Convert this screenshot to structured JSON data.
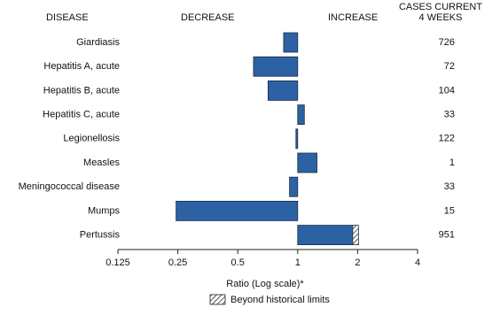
{
  "chart_data": {
    "type": "bar",
    "orientation": "horizontal",
    "headers": {
      "disease": "DISEASE",
      "decrease": "DECREASE",
      "increase": "INCREASE",
      "cases": [
        "CASES CURRENT",
        "4 WEEKS"
      ]
    },
    "categories": [
      "Giardiasis",
      "Hepatitis A, acute",
      "Hepatitis B, acute",
      "Hepatitis C, acute",
      "Legionellosis",
      "Measles",
      "Meningococcal disease",
      "Mumps",
      "Pertussis"
    ],
    "values": [
      0.85,
      0.6,
      0.71,
      1.08,
      0.98,
      1.25,
      0.91,
      0.245,
      2.02
    ],
    "historical_limits": [
      null,
      null,
      null,
      null,
      null,
      null,
      null,
      null,
      1.89
    ],
    "cases": [
      726,
      72,
      104,
      33,
      122,
      1,
      33,
      15,
      951
    ],
    "color": "#2c62a3",
    "xlabel": "Ratio (Log scale)*",
    "xscale": "log",
    "xlim": [
      0.125,
      4
    ],
    "xticks": [
      0.125,
      0.25,
      0.5,
      1,
      2,
      4
    ],
    "legend": "Beyond historical limits"
  }
}
